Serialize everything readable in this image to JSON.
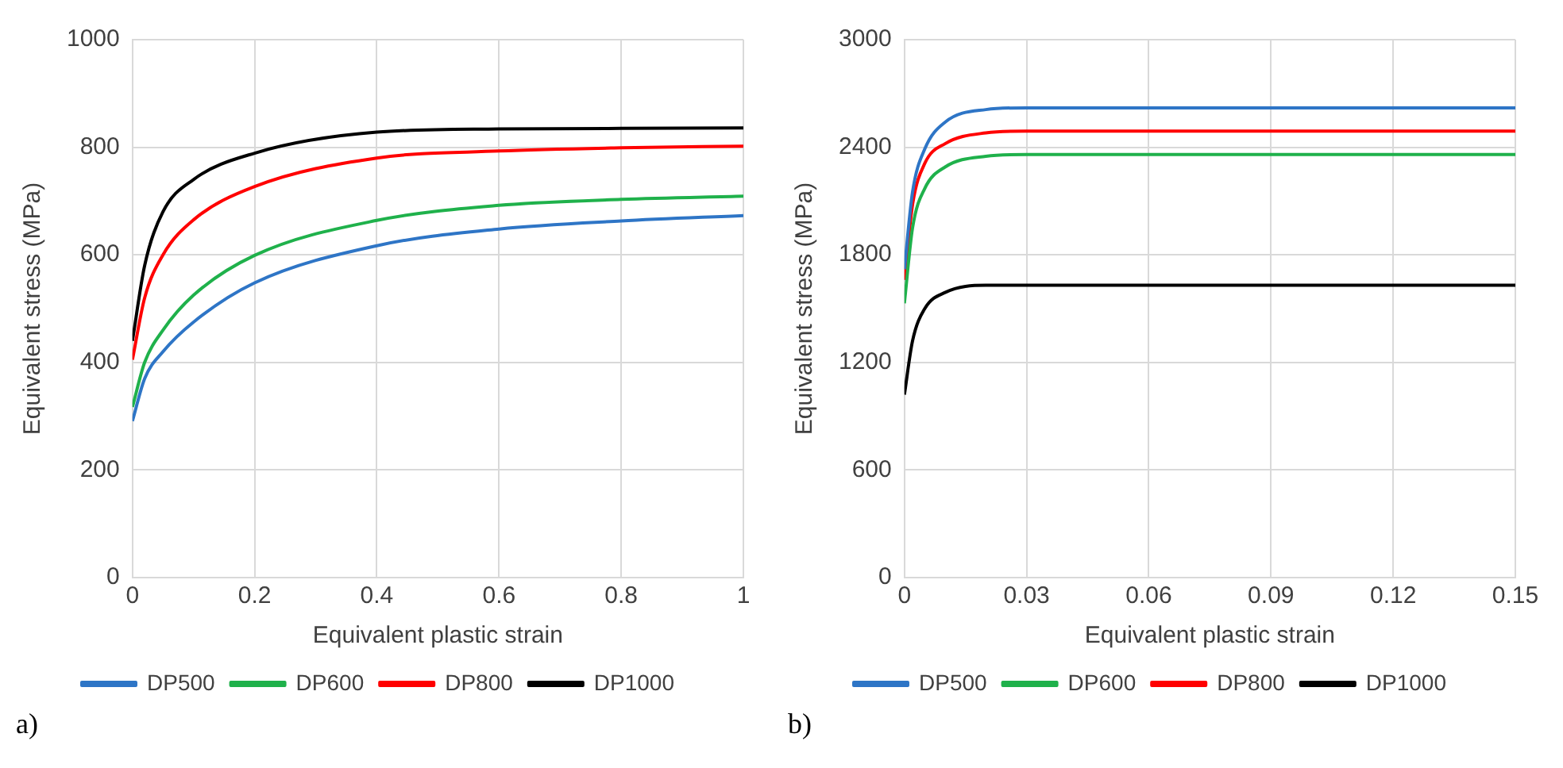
{
  "chart_data": [
    {
      "type": "line",
      "xlabel": "Equivalent plastic strain",
      "ylabel": "Equivalent stress (MPa)",
      "annotations": [
        "a)"
      ],
      "xlim": [
        0,
        1
      ],
      "xticks": [
        0,
        0.2,
        0.4,
        0.6,
        0.8,
        1
      ],
      "ylim": [
        0,
        1000
      ],
      "yticks": [
        0,
        200,
        400,
        600,
        800,
        1000
      ],
      "grid": true,
      "legend": "bottom",
      "marker": "none",
      "line_style": "solid",
      "series": [
        {
          "name": "DP500",
          "color": "#2e75c6",
          "x": [
            0,
            0.02,
            0.05,
            0.1,
            0.2,
            0.4,
            0.6,
            0.8,
            1
          ],
          "values": [
            291,
            370,
            420,
            475,
            548,
            617,
            648,
            663,
            673
          ]
        },
        {
          "name": "DP600",
          "color": "#1fb14b",
          "x": [
            0,
            0.02,
            0.05,
            0.1,
            0.2,
            0.4,
            0.6,
            0.8,
            1
          ],
          "values": [
            317,
            400,
            460,
            525,
            599,
            664,
            692,
            703,
            709
          ]
        },
        {
          "name": "DP800",
          "color": "#ff0000",
          "x": [
            0,
            0.02,
            0.05,
            0.1,
            0.2,
            0.4,
            0.6,
            0.8,
            1
          ],
          "values": [
            405,
            520,
            600,
            665,
            727,
            780,
            793,
            799,
            802
          ]
        },
        {
          "name": "DP1000",
          "color": "#000000",
          "x": [
            0,
            0.02,
            0.05,
            0.1,
            0.2,
            0.4,
            0.6,
            0.8,
            1
          ],
          "values": [
            440,
            580,
            680,
            740,
            789,
            828,
            834,
            835,
            836
          ]
        }
      ]
    },
    {
      "type": "line",
      "xlabel": "Equivalent plastic strain",
      "ylabel": "Equivalent stress (MPa)",
      "annotations": [
        "b)"
      ],
      "xlim": [
        0,
        0.15
      ],
      "xticks": [
        0,
        0.03,
        0.06,
        0.09,
        0.12,
        0.15
      ],
      "ylim": [
        0,
        3000
      ],
      "yticks": [
        0,
        600,
        1200,
        1800,
        2400,
        3000
      ],
      "grid": true,
      "legend": "bottom",
      "marker": "none",
      "line_style": "solid",
      "series": [
        {
          "name": "DP500",
          "color": "#2e75c6",
          "x": [
            0,
            0.002,
            0.005,
            0.01,
            0.02,
            0.03,
            0.15
          ],
          "values": [
            1720,
            2150,
            2390,
            2540,
            2610,
            2620,
            2620
          ]
        },
        {
          "name": "DP600",
          "color": "#1fb14b",
          "x": [
            0,
            0.002,
            0.005,
            0.01,
            0.02,
            0.03,
            0.15
          ],
          "values": [
            1530,
            1950,
            2170,
            2290,
            2350,
            2360,
            2360
          ]
        },
        {
          "name": "DP800",
          "color": "#ff0000",
          "x": [
            0,
            0.002,
            0.005,
            0.01,
            0.02,
            0.03,
            0.15
          ],
          "values": [
            1660,
            2080,
            2310,
            2420,
            2480,
            2490,
            2490
          ]
        },
        {
          "name": "DP1000",
          "color": "#000000",
          "x": [
            0,
            0.002,
            0.005,
            0.01,
            0.02,
            0.03,
            0.15
          ],
          "values": [
            1020,
            1320,
            1500,
            1590,
            1630,
            1630,
            1630
          ]
        }
      ]
    }
  ]
}
